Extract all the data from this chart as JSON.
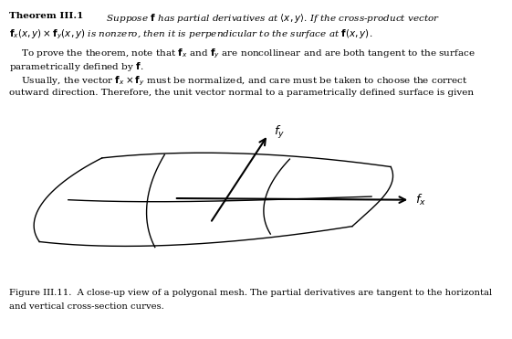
{
  "bg_color": "#ffffff",
  "text_color": "#000000",
  "fig_caption": "Figure III.11.  A close-up view of a polygonal mesh. The partial derivatives are tangent to the horizontal\nand vertical cross-section curves."
}
